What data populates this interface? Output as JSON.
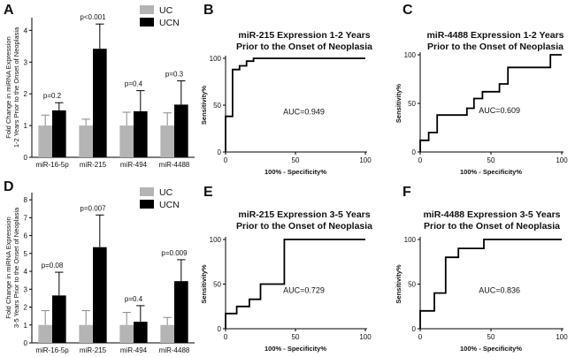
{
  "chart_data": [
    {
      "id": "A",
      "type": "bar",
      "panel_label": "A",
      "ylabel": "Fold Change in miRNA Expression 1-2 Years Prior to the Onset of Neoplasia",
      "ylabel_lines": [
        "Fold Change in miRNA Expression",
        "1-2 Years Prior to the Onset of Neoplasia"
      ],
      "ylim": [
        0,
        4.4
      ],
      "yticks": [
        "0",
        "1",
        "2",
        "3",
        "4"
      ],
      "categories": [
        "miR-16-5p",
        "miR-215",
        "miR-494",
        "miR-4488"
      ],
      "series": [
        {
          "name": "UC",
          "color": "#b4b4b4",
          "values": [
            1.0,
            1.0,
            1.0,
            1.0
          ],
          "errors": [
            0.33,
            0.2,
            0.42,
            0.4
          ]
        },
        {
          "name": "UCN",
          "color": "#000000",
          "values": [
            1.48,
            3.42,
            1.45,
            1.66
          ],
          "errors": [
            0.24,
            0.78,
            0.65,
            0.75
          ]
        }
      ],
      "pvalues": [
        "p=0.2",
        "p<0.001",
        "p=0.4",
        "p=0.3"
      ],
      "legend": [
        "UC",
        "UCN"
      ]
    },
    {
      "id": "D",
      "type": "bar",
      "panel_label": "D",
      "ylabel": "Fold Change in miRNA Expression 3-5 Years Prior to the Onset of Neoplasia",
      "ylabel_lines": [
        "Fold Change in miRNA Expression",
        "3-5 Years Prior to the Onset of Neoplasia"
      ],
      "ylim": [
        0,
        8.4
      ],
      "yticks": [
        "0",
        "1",
        "2",
        "3",
        "4",
        "5",
        "6",
        "7",
        "8"
      ],
      "categories": [
        "miR-16-5p",
        "miR-215",
        "miR-494",
        "miR-4488"
      ],
      "series": [
        {
          "name": "UC",
          "color": "#b4b4b4",
          "values": [
            1.0,
            1.0,
            1.0,
            1.0
          ],
          "errors": [
            0.8,
            0.8,
            0.7,
            0.42
          ]
        },
        {
          "name": "UCN",
          "color": "#000000",
          "values": [
            2.65,
            5.35,
            1.18,
            3.45
          ],
          "errors": [
            1.3,
            1.8,
            0.9,
            1.2
          ]
        }
      ],
      "pvalues": [
        "p=0.08",
        "p=0.007",
        "p=0.4",
        "p=0.009"
      ],
      "legend": [
        "UC",
        "UCN"
      ]
    },
    {
      "id": "B",
      "type": "line",
      "panel_label": "B",
      "title_lines": [
        "miR-215 Expression 1-2 Years",
        "Prior to the Onset of Neoplasia"
      ],
      "xlabel": "100% - Specificity%",
      "ylabel": "Sensitivity%",
      "xlim": [
        0,
        100
      ],
      "ylim": [
        0,
        100
      ],
      "xticks": [
        "0",
        "50",
        "100"
      ],
      "yticks": [
        "0",
        "50",
        "100"
      ],
      "auc": "AUC=0.949",
      "x": [
        0,
        0,
        5,
        5,
        10,
        10,
        15,
        15,
        20,
        20,
        100
      ],
      "y": [
        0,
        38,
        38,
        88,
        88,
        92,
        92,
        97,
        97,
        100,
        100
      ]
    },
    {
      "id": "C",
      "type": "line",
      "panel_label": "C",
      "title_lines": [
        "miR-4488 Expression 1-2 Years",
        "Prior to the Onset of Neoplasia"
      ],
      "xlabel": "100% - Specificity%",
      "ylabel": "Sensitivity%",
      "xlim": [
        0,
        100
      ],
      "ylim": [
        0,
        100
      ],
      "xticks": [
        "0",
        "50",
        "100"
      ],
      "yticks": [
        "0",
        "50",
        "100"
      ],
      "auc": "AUC=0.609",
      "x": [
        0,
        0,
        6,
        6,
        12,
        12,
        33,
        33,
        38,
        38,
        44,
        44,
        50,
        50,
        56,
        56,
        62,
        62,
        92,
        92,
        100,
        100
      ],
      "y": [
        0,
        12,
        12,
        20,
        20,
        38,
        38,
        45,
        45,
        55,
        55,
        62,
        62,
        62,
        62,
        70,
        70,
        87,
        87,
        100,
        100,
        100
      ]
    },
    {
      "id": "E",
      "type": "line",
      "panel_label": "E",
      "title_lines": [
        "miR-215 Expression 3-5 Years",
        "Prior to the Onset of Neoplasia"
      ],
      "xlabel": "100% - Specificity%",
      "ylabel": "Sensitivity%",
      "xlim": [
        0,
        100
      ],
      "ylim": [
        0,
        100
      ],
      "xticks": [
        "0",
        "50",
        "100"
      ],
      "yticks": [
        "0",
        "50",
        "100"
      ],
      "auc": "AUC=0.729",
      "x": [
        0,
        0,
        8,
        8,
        17,
        17,
        25,
        25,
        42,
        42,
        100
      ],
      "y": [
        0,
        17,
        17,
        25,
        25,
        33,
        33,
        50,
        50,
        100,
        100
      ]
    },
    {
      "id": "F",
      "type": "line",
      "panel_label": "F",
      "title_lines": [
        "miR-4488 Expression 3-5 Years",
        "Prior to the Onset of Neoplasia"
      ],
      "xlabel": "100% - Specificity%",
      "ylabel": "Sensitivity%",
      "xlim": [
        0,
        100
      ],
      "ylim": [
        0,
        100
      ],
      "xticks": [
        "0",
        "50",
        "100"
      ],
      "yticks": [
        "0",
        "50",
        "100"
      ],
      "auc": "AUC=0.836",
      "x": [
        0,
        0,
        10,
        10,
        18,
        18,
        27,
        27,
        45,
        45,
        100
      ],
      "y": [
        0,
        20,
        20,
        40,
        40,
        80,
        80,
        90,
        90,
        100,
        100
      ]
    }
  ]
}
